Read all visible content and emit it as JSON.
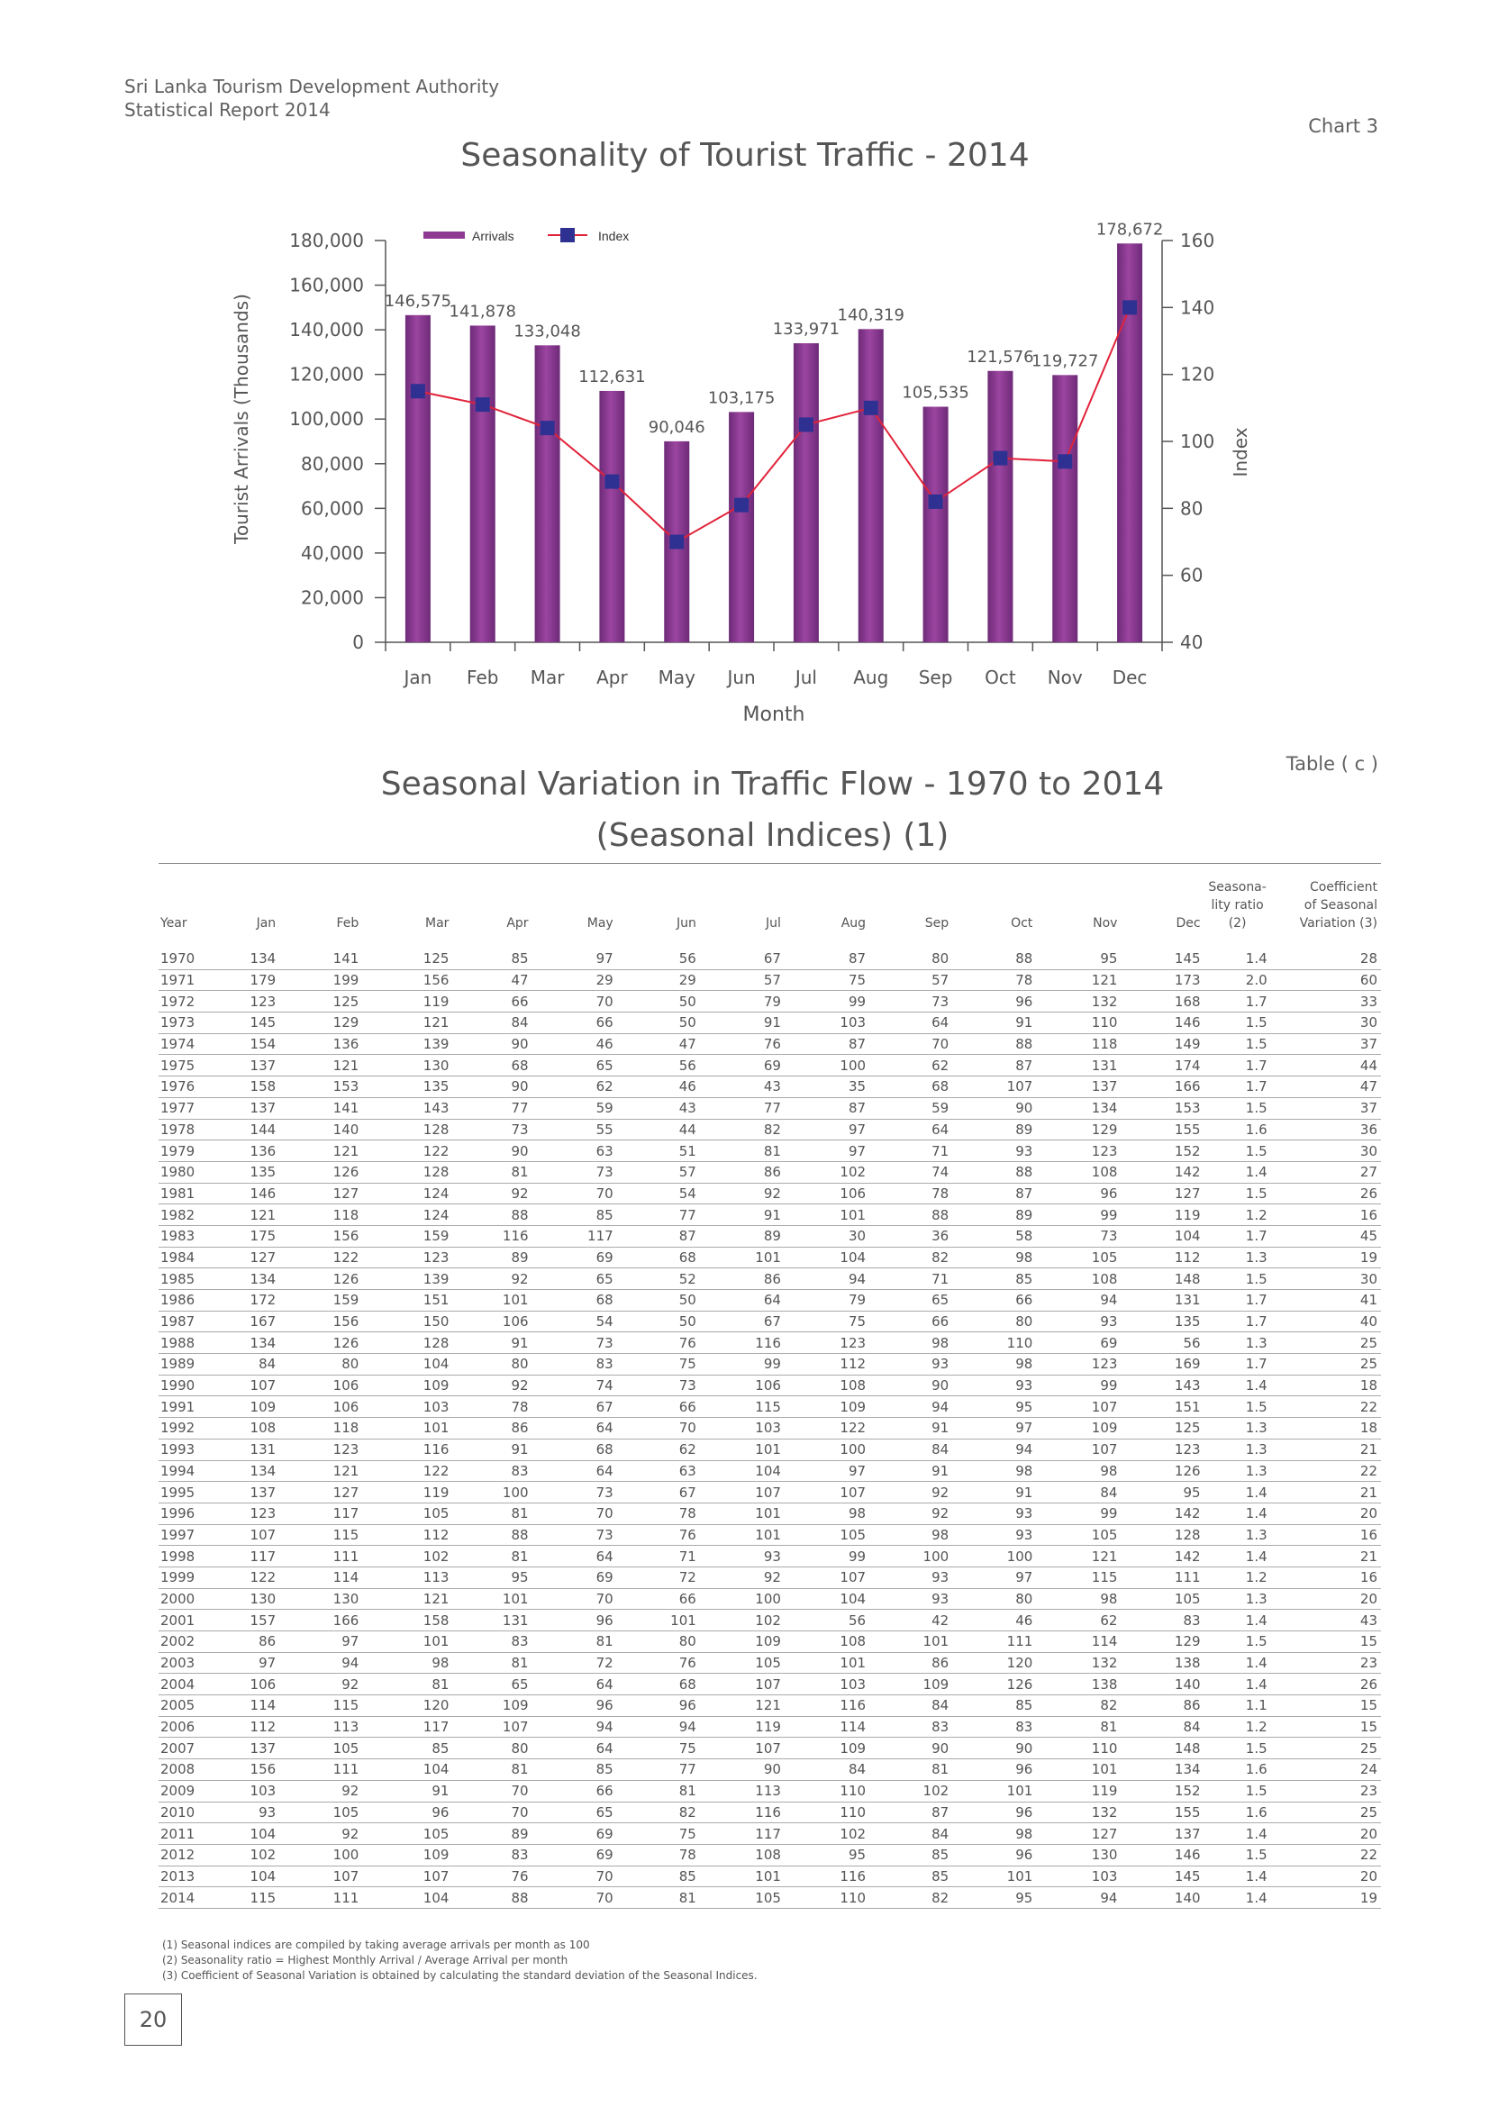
{
  "header": {
    "org": "Sri Lanka Tourism Development Authority",
    "report": "Statistical Report 2014",
    "chart_ref": "Chart 3",
    "table_ref": "Table ( c )",
    "page_number": "20"
  },
  "chart_data": {
    "type": "bar",
    "title": "Seasonality of Tourist Traffic - 2014",
    "xlabel": "Month",
    "ylabel": "Tourist Arrivals (Thousands)",
    "y2label": "Index",
    "categories": [
      "Jan",
      "Feb",
      "Mar",
      "Apr",
      "May",
      "Jun",
      "Jul",
      "Aug",
      "Sep",
      "Oct",
      "Nov",
      "Dec"
    ],
    "ylim": [
      0,
      180000
    ],
    "y2lim": [
      40,
      160
    ],
    "yticks": [
      "0",
      "20,000",
      "40,000",
      "60,000",
      "80,000",
      "100,000",
      "120,000",
      "140,000",
      "160,000",
      "180,000"
    ],
    "y2ticks": [
      "40",
      "60",
      "80",
      "100",
      "120",
      "140",
      "160"
    ],
    "series": [
      {
        "name": "Arrivals",
        "type": "bar",
        "color": "#8e3a93",
        "values": [
          146575,
          141878,
          133048,
          112631,
          90046,
          103175,
          133971,
          140319,
          105535,
          121576,
          119727,
          178672
        ],
        "labels": [
          "146,575",
          "141,878",
          "133,048",
          "112,631",
          "90,046",
          "103,175",
          "133,971",
          "140,319",
          "105,535",
          "121,576",
          "119,727",
          "178,672"
        ]
      },
      {
        "name": "Index",
        "type": "line",
        "axis": "right",
        "color": "#e1233a",
        "marker_color": "#2e3192",
        "values": [
          115,
          111,
          104,
          88,
          70,
          81,
          105,
          110,
          82,
          95,
          94,
          140
        ]
      }
    ],
    "legend": "top-left"
  },
  "table": {
    "title_line1": "Seasonal Variation in Traffic Flow - 1970 to 2014",
    "title_line2": "(Seasonal Indices) (1)",
    "columns": [
      "Year",
      "Jan",
      "Feb",
      "Mar",
      "Apr",
      "May",
      "Jun",
      "Jul",
      "Aug",
      "Sep",
      "Oct",
      "Nov",
      "Dec"
    ],
    "col_ratio": [
      "Seasona-",
      "lity ratio",
      "(2)"
    ],
    "col_cv": [
      "Coefficient",
      "of Seasonal",
      "Variation (3)"
    ],
    "rows": [
      [
        "1970",
        "134",
        "141",
        "125",
        "85",
        "97",
        "56",
        "67",
        "87",
        "80",
        "88",
        "95",
        "145",
        "1.4",
        "28"
      ],
      [
        "1971",
        "179",
        "199",
        "156",
        "47",
        "29",
        "29",
        "57",
        "75",
        "57",
        "78",
        "121",
        "173",
        "2.0",
        "60"
      ],
      [
        "1972",
        "123",
        "125",
        "119",
        "66",
        "70",
        "50",
        "79",
        "99",
        "73",
        "96",
        "132",
        "168",
        "1.7",
        "33"
      ],
      [
        "1973",
        "145",
        "129",
        "121",
        "84",
        "66",
        "50",
        "91",
        "103",
        "64",
        "91",
        "110",
        "146",
        "1.5",
        "30"
      ],
      [
        "1974",
        "154",
        "136",
        "139",
        "90",
        "46",
        "47",
        "76",
        "87",
        "70",
        "88",
        "118",
        "149",
        "1.5",
        "37"
      ],
      [
        "1975",
        "137",
        "121",
        "130",
        "68",
        "65",
        "56",
        "69",
        "100",
        "62",
        "87",
        "131",
        "174",
        "1.7",
        "44"
      ],
      [
        "1976",
        "158",
        "153",
        "135",
        "90",
        "62",
        "46",
        "43",
        "35",
        "68",
        "107",
        "137",
        "166",
        "1.7",
        "47"
      ],
      [
        "1977",
        "137",
        "141",
        "143",
        "77",
        "59",
        "43",
        "77",
        "87",
        "59",
        "90",
        "134",
        "153",
        "1.5",
        "37"
      ],
      [
        "1978",
        "144",
        "140",
        "128",
        "73",
        "55",
        "44",
        "82",
        "97",
        "64",
        "89",
        "129",
        "155",
        "1.6",
        "36"
      ],
      [
        "1979",
        "136",
        "121",
        "122",
        "90",
        "63",
        "51",
        "81",
        "97",
        "71",
        "93",
        "123",
        "152",
        "1.5",
        "30"
      ],
      [
        "1980",
        "135",
        "126",
        "128",
        "81",
        "73",
        "57",
        "86",
        "102",
        "74",
        "88",
        "108",
        "142",
        "1.4",
        "27"
      ],
      [
        "1981",
        "146",
        "127",
        "124",
        "92",
        "70",
        "54",
        "92",
        "106",
        "78",
        "87",
        "96",
        "127",
        "1.5",
        "26"
      ],
      [
        "1982",
        "121",
        "118",
        "124",
        "88",
        "85",
        "77",
        "91",
        "101",
        "88",
        "89",
        "99",
        "119",
        "1.2",
        "16"
      ],
      [
        "1983",
        "175",
        "156",
        "159",
        "116",
        "117",
        "87",
        "89",
        "30",
        "36",
        "58",
        "73",
        "104",
        "1.7",
        "45"
      ],
      [
        "1984",
        "127",
        "122",
        "123",
        "89",
        "69",
        "68",
        "101",
        "104",
        "82",
        "98",
        "105",
        "112",
        "1.3",
        "19"
      ],
      [
        "1985",
        "134",
        "126",
        "139",
        "92",
        "65",
        "52",
        "86",
        "94",
        "71",
        "85",
        "108",
        "148",
        "1.5",
        "30"
      ],
      [
        "1986",
        "172",
        "159",
        "151",
        "101",
        "68",
        "50",
        "64",
        "79",
        "65",
        "66",
        "94",
        "131",
        "1.7",
        "41"
      ],
      [
        "1987",
        "167",
        "156",
        "150",
        "106",
        "54",
        "50",
        "67",
        "75",
        "66",
        "80",
        "93",
        "135",
        "1.7",
        "40"
      ],
      [
        "1988",
        "134",
        "126",
        "128",
        "91",
        "73",
        "76",
        "116",
        "123",
        "98",
        "110",
        "69",
        "56",
        "1.3",
        "25"
      ],
      [
        "1989",
        "84",
        "80",
        "104",
        "80",
        "83",
        "75",
        "99",
        "112",
        "93",
        "98",
        "123",
        "169",
        "1.7",
        "25"
      ],
      [
        "1990",
        "107",
        "106",
        "109",
        "92",
        "74",
        "73",
        "106",
        "108",
        "90",
        "93",
        "99",
        "143",
        "1.4",
        "18"
      ],
      [
        "1991",
        "109",
        "106",
        "103",
        "78",
        "67",
        "66",
        "115",
        "109",
        "94",
        "95",
        "107",
        "151",
        "1.5",
        "22"
      ],
      [
        "1992",
        "108",
        "118",
        "101",
        "86",
        "64",
        "70",
        "103",
        "122",
        "91",
        "97",
        "109",
        "125",
        "1.3",
        "18"
      ],
      [
        "1993",
        "131",
        "123",
        "116",
        "91",
        "68",
        "62",
        "101",
        "100",
        "84",
        "94",
        "107",
        "123",
        "1.3",
        "21"
      ],
      [
        "1994",
        "134",
        "121",
        "122",
        "83",
        "64",
        "63",
        "104",
        "97",
        "91",
        "98",
        "98",
        "126",
        "1.3",
        "22"
      ],
      [
        "1995",
        "137",
        "127",
        "119",
        "100",
        "73",
        "67",
        "107",
        "107",
        "92",
        "91",
        "84",
        "95",
        "1.4",
        "21"
      ],
      [
        "1996",
        "123",
        "117",
        "105",
        "81",
        "70",
        "78",
        "101",
        "98",
        "92",
        "93",
        "99",
        "142",
        "1.4",
        "20"
      ],
      [
        "1997",
        "107",
        "115",
        "112",
        "88",
        "73",
        "76",
        "101",
        "105",
        "98",
        "93",
        "105",
        "128",
        "1.3",
        "16"
      ],
      [
        "1998",
        "117",
        "111",
        "102",
        "81",
        "64",
        "71",
        "93",
        "99",
        "100",
        "100",
        "121",
        "142",
        "1.4",
        "21"
      ],
      [
        "1999",
        "122",
        "114",
        "113",
        "95",
        "69",
        "72",
        "92",
        "107",
        "93",
        "97",
        "115",
        "111",
        "1.2",
        "16"
      ],
      [
        "2000",
        "130",
        "130",
        "121",
        "101",
        "70",
        "66",
        "100",
        "104",
        "93",
        "80",
        "98",
        "105",
        "1.3",
        "20"
      ],
      [
        "2001",
        "157",
        "166",
        "158",
        "131",
        "96",
        "101",
        "102",
        "56",
        "42",
        "46",
        "62",
        "83",
        "1.4",
        "43"
      ],
      [
        "2002",
        "86",
        "97",
        "101",
        "83",
        "81",
        "80",
        "109",
        "108",
        "101",
        "111",
        "114",
        "129",
        "1.5",
        "15"
      ],
      [
        "2003",
        "97",
        "94",
        "98",
        "81",
        "72",
        "76",
        "105",
        "101",
        "86",
        "120",
        "132",
        "138",
        "1.4",
        "23"
      ],
      [
        "2004",
        "106",
        "92",
        "81",
        "65",
        "64",
        "68",
        "107",
        "103",
        "109",
        "126",
        "138",
        "140",
        "1.4",
        "26"
      ],
      [
        "2005",
        "114",
        "115",
        "120",
        "109",
        "96",
        "96",
        "121",
        "116",
        "84",
        "85",
        "82",
        "86",
        "1.1",
        "15"
      ],
      [
        "2006",
        "112",
        "113",
        "117",
        "107",
        "94",
        "94",
        "119",
        "114",
        "83",
        "83",
        "81",
        "84",
        "1.2",
        "15"
      ],
      [
        "2007",
        "137",
        "105",
        "85",
        "80",
        "64",
        "75",
        "107",
        "109",
        "90",
        "90",
        "110",
        "148",
        "1.5",
        "25"
      ],
      [
        "2008",
        "156",
        "111",
        "104",
        "81",
        "85",
        "77",
        "90",
        "84",
        "81",
        "96",
        "101",
        "134",
        "1.6",
        "24"
      ],
      [
        "2009",
        "103",
        "92",
        "91",
        "70",
        "66",
        "81",
        "113",
        "110",
        "102",
        "101",
        "119",
        "152",
        "1.5",
        "23"
      ],
      [
        "2010",
        "93",
        "105",
        "96",
        "70",
        "65",
        "82",
        "116",
        "110",
        "87",
        "96",
        "132",
        "155",
        "1.6",
        "25"
      ],
      [
        "2011",
        "104",
        "92",
        "105",
        "89",
        "69",
        "75",
        "117",
        "102",
        "84",
        "98",
        "127",
        "137",
        "1.4",
        "20"
      ],
      [
        "2012",
        "102",
        "100",
        "109",
        "83",
        "69",
        "78",
        "108",
        "95",
        "85",
        "96",
        "130",
        "146",
        "1.5",
        "22"
      ],
      [
        "2013",
        "104",
        "107",
        "107",
        "76",
        "70",
        "85",
        "101",
        "116",
        "85",
        "101",
        "103",
        "145",
        "1.4",
        "20"
      ],
      [
        "2014",
        "115",
        "111",
        "104",
        "88",
        "70",
        "81",
        "105",
        "110",
        "82",
        "95",
        "94",
        "140",
        "1.4",
        "19"
      ]
    ]
  },
  "footnotes": [
    "(1)    Seasonal indices are compiled by taking average arrivals per month as 100",
    "(2)    Seasonality ratio = Highest Monthly Arrival / Average Arrival per month",
    "(3)    Coefficient of Seasonal Variation is obtained by calculating the standard deviation of the Seasonal Indices."
  ]
}
